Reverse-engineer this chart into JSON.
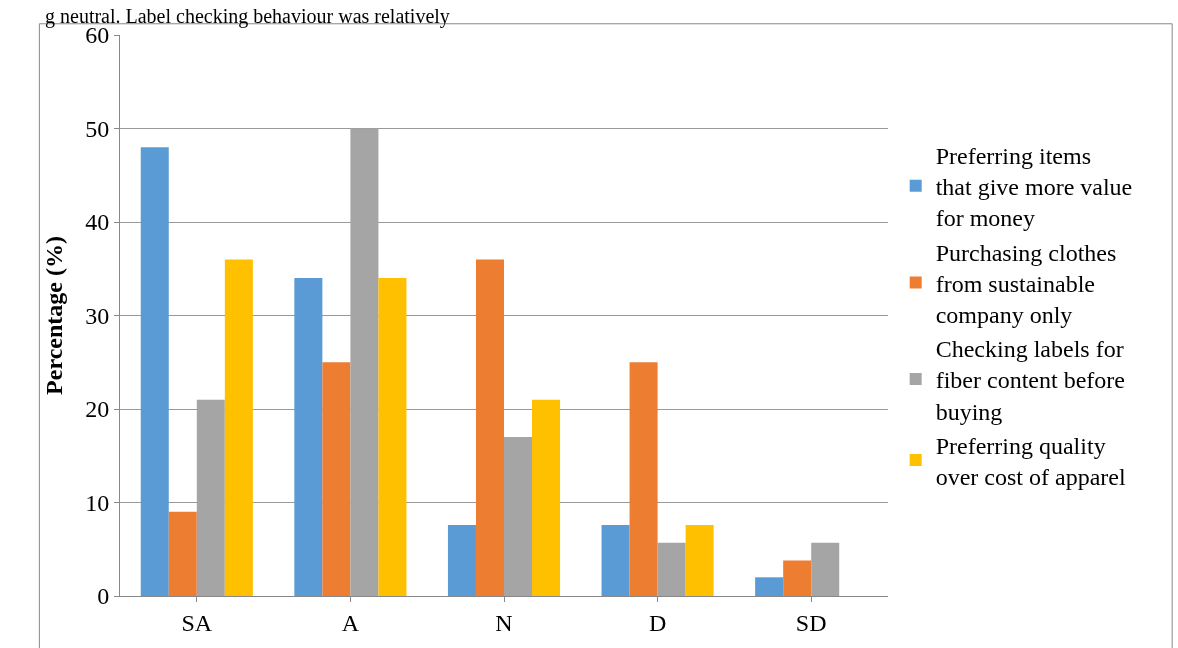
{
  "chart_data": {
    "type": "bar",
    "ylabel": "Percentage (%)",
    "annotations": [
      "g neutral. Label checking behaviour was relatively"
    ],
    "categories": [
      "SA",
      "A",
      "N",
      "D",
      "SD"
    ],
    "series": [
      {
        "name": "Preferring items that give more value for money",
        "color": "#5b9bd5",
        "values": [
          48,
          34,
          7.6,
          7.6,
          2
        ]
      },
      {
        "name": "Purchasing clothes from sustainable company only",
        "color": "#ed7d31",
        "values": [
          9,
          25,
          36,
          25,
          3.8
        ]
      },
      {
        "name": "Checking labels for fiber content before buying",
        "color": "#a5a5a5",
        "values": [
          21,
          50,
          17,
          5.7,
          5.7
        ]
      },
      {
        "name": "Preferring quality over cost of apparel",
        "color": "#ffc000",
        "values": [
          36,
          34,
          21,
          7.6,
          null
        ]
      }
    ],
    "ylim": [
      0,
      60
    ],
    "yticks": [
      0,
      10,
      20,
      30,
      40,
      50,
      60
    ],
    "grid": "y",
    "legend": "right"
  }
}
